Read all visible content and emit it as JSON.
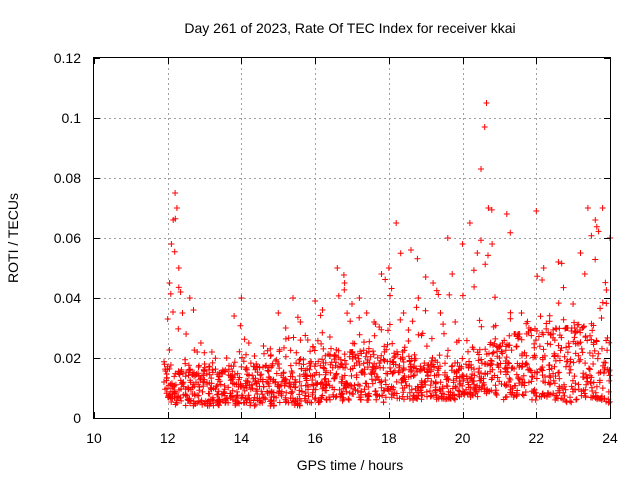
{
  "chart_data": {
    "type": "scatter",
    "title": "Day 261 of 2023, Rate Of TEC Index for receiver kkai",
    "xlabel": "GPS time / hours",
    "ylabel": "ROTI / TECUs",
    "xlim": [
      10,
      24
    ],
    "ylim": [
      0,
      0.12
    ],
    "x_ticks": [
      "10",
      "12",
      "14",
      "16",
      "18",
      "20",
      "22",
      "24"
    ],
    "y_ticks": [
      "0",
      "0.02",
      "0.04",
      "0.06",
      "0.08",
      "0.1",
      "0.12"
    ],
    "grid": true,
    "marker": "+",
    "series": [
      {
        "name": "ROTI",
        "color": "#ff0000",
        "x": [
          11.9,
          12.0,
          12.05,
          12.1,
          12.15,
          12.2,
          12.25,
          12.3,
          12.35,
          12.4,
          12.5,
          12.6,
          12.7,
          12.8,
          12.9,
          13.0,
          13.2,
          13.4,
          13.6,
          13.8,
          14.0,
          14.2,
          14.4,
          14.6,
          14.8,
          15.0,
          15.2,
          15.4,
          15.6,
          15.8,
          16.0,
          16.2,
          16.4,
          16.6,
          16.8,
          17.0,
          17.2,
          17.4,
          17.6,
          17.8,
          18.0,
          18.2,
          18.4,
          18.6,
          18.8,
          19.0,
          19.2,
          19.4,
          19.6,
          19.8,
          20.0,
          20.2,
          20.4,
          20.5,
          20.6,
          20.65,
          20.7,
          20.8,
          21.0,
          21.2,
          21.4,
          21.6,
          21.8,
          22.0,
          22.2,
          22.4,
          22.6,
          22.8,
          23.0,
          23.2,
          23.4,
          23.6,
          23.8,
          24.0
        ],
        "y": [
          0.012,
          0.033,
          0.045,
          0.058,
          0.066,
          0.075,
          0.07,
          0.05,
          0.042,
          0.035,
          0.028,
          0.04,
          0.036,
          0.022,
          0.025,
          0.018,
          0.022,
          0.015,
          0.02,
          0.034,
          0.04,
          0.025,
          0.018,
          0.024,
          0.021,
          0.035,
          0.03,
          0.04,
          0.032,
          0.026,
          0.039,
          0.036,
          0.027,
          0.05,
          0.045,
          0.038,
          0.04,
          0.035,
          0.032,
          0.048,
          0.05,
          0.065,
          0.035,
          0.056,
          0.04,
          0.047,
          0.045,
          0.035,
          0.06,
          0.032,
          0.058,
          0.065,
          0.055,
          0.083,
          0.097,
          0.105,
          0.07,
          0.058,
          0.02,
          0.068,
          0.028,
          0.035,
          0.03,
          0.069,
          0.05,
          0.028,
          0.052,
          0.03,
          0.038,
          0.055,
          0.07,
          0.066,
          0.07,
          0.06
        ],
        "y_low": [
          0.008,
          0.004,
          0.005,
          0.005,
          0.004,
          0.004,
          0.005,
          0.005,
          0.004,
          0.004,
          0.005,
          0.004,
          0.004,
          0.005,
          0.004,
          0.004,
          0.004,
          0.005,
          0.005,
          0.004,
          0.005,
          0.004,
          0.005,
          0.004,
          0.004,
          0.005,
          0.005,
          0.004,
          0.005,
          0.005,
          0.005,
          0.006,
          0.005,
          0.005,
          0.006,
          0.006,
          0.006,
          0.005,
          0.006,
          0.005,
          0.006,
          0.006,
          0.005,
          0.006,
          0.006,
          0.007,
          0.006,
          0.006,
          0.006,
          0.007,
          0.007,
          0.007,
          0.007,
          0.007,
          0.006,
          0.007,
          0.007,
          0.007,
          0.006,
          0.007,
          0.007,
          0.007,
          0.006,
          0.007,
          0.007,
          0.006,
          0.006,
          0.005,
          0.006,
          0.006,
          0.006,
          0.006,
          0.005,
          0.005
        ],
        "y_band_top": [
          0.02,
          0.018,
          0.02,
          0.02,
          0.02,
          0.018,
          0.017,
          0.016,
          0.016,
          0.016,
          0.016,
          0.016,
          0.015,
          0.016,
          0.016,
          0.016,
          0.016,
          0.016,
          0.016,
          0.017,
          0.017,
          0.017,
          0.017,
          0.018,
          0.018,
          0.018,
          0.018,
          0.019,
          0.019,
          0.019,
          0.02,
          0.02,
          0.021,
          0.021,
          0.022,
          0.022,
          0.022,
          0.022,
          0.023,
          0.023,
          0.022,
          0.022,
          0.021,
          0.021,
          0.02,
          0.019,
          0.019,
          0.018,
          0.018,
          0.018,
          0.018,
          0.02,
          0.022,
          0.022,
          0.023,
          0.024,
          0.025,
          0.025,
          0.026,
          0.027,
          0.028,
          0.028,
          0.029,
          0.029,
          0.029,
          0.03,
          0.03,
          0.03,
          0.03,
          0.03,
          0.03,
          0.03,
          0.03,
          0.03
        ]
      }
    ]
  }
}
